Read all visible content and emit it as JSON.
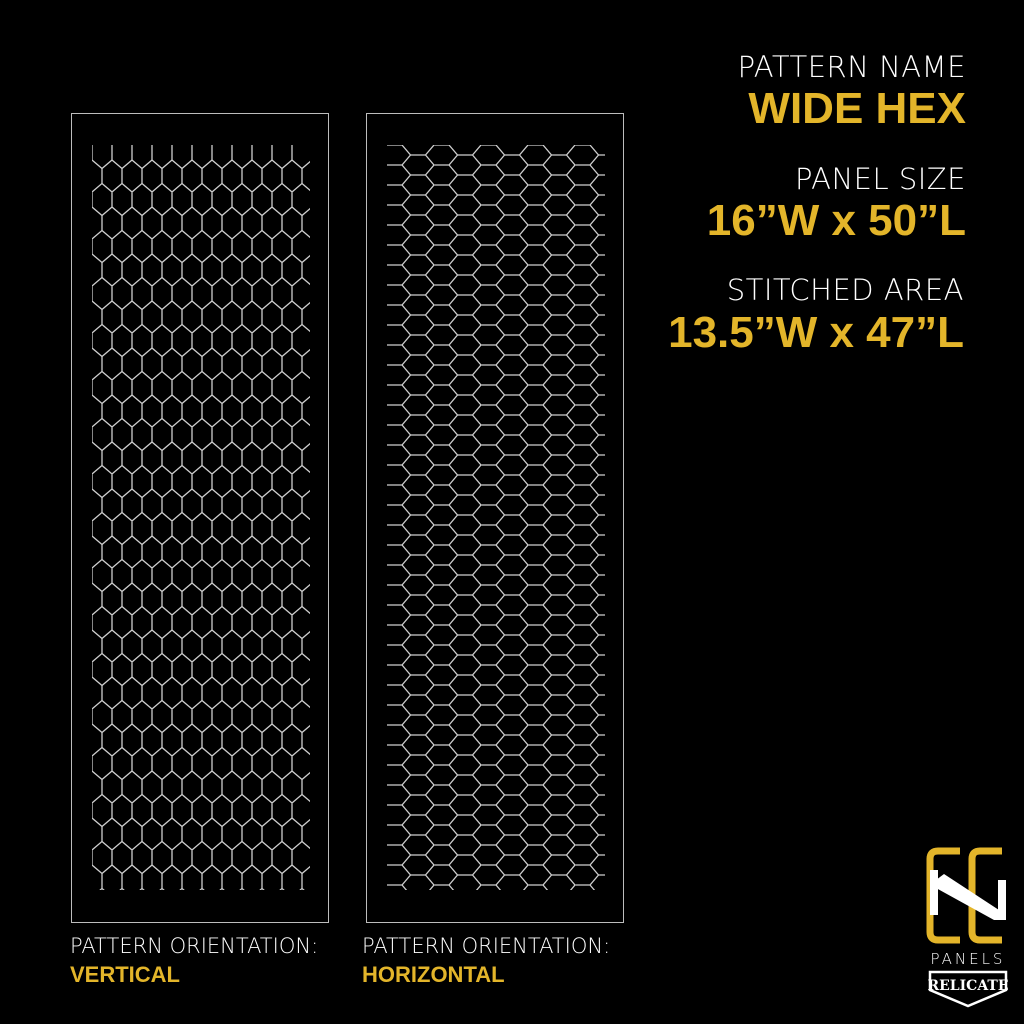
{
  "specs": {
    "pattern_name_label": "PATTERN NAME",
    "pattern_name": "WIDE HEX",
    "panel_size_label": "PANEL SIZE",
    "panel_size": "16”W x 50”L",
    "stitched_area_label": "STITCHED AREA",
    "stitched_area": "13.5”W x 47”L"
  },
  "panels": [
    {
      "orientation_label": "PATTERN ORIENTATION:",
      "orientation": "VERTICAL"
    },
    {
      "orientation_label": "PATTERN ORIENTATION:",
      "orientation": "HORIZONTAL"
    }
  ],
  "logo": {
    "mark": "CC",
    "text": "PANELS",
    "badge": "RELICATE"
  },
  "colors": {
    "accent": "#e3b52a",
    "background": "#000000",
    "line": "#d0d0d0"
  }
}
